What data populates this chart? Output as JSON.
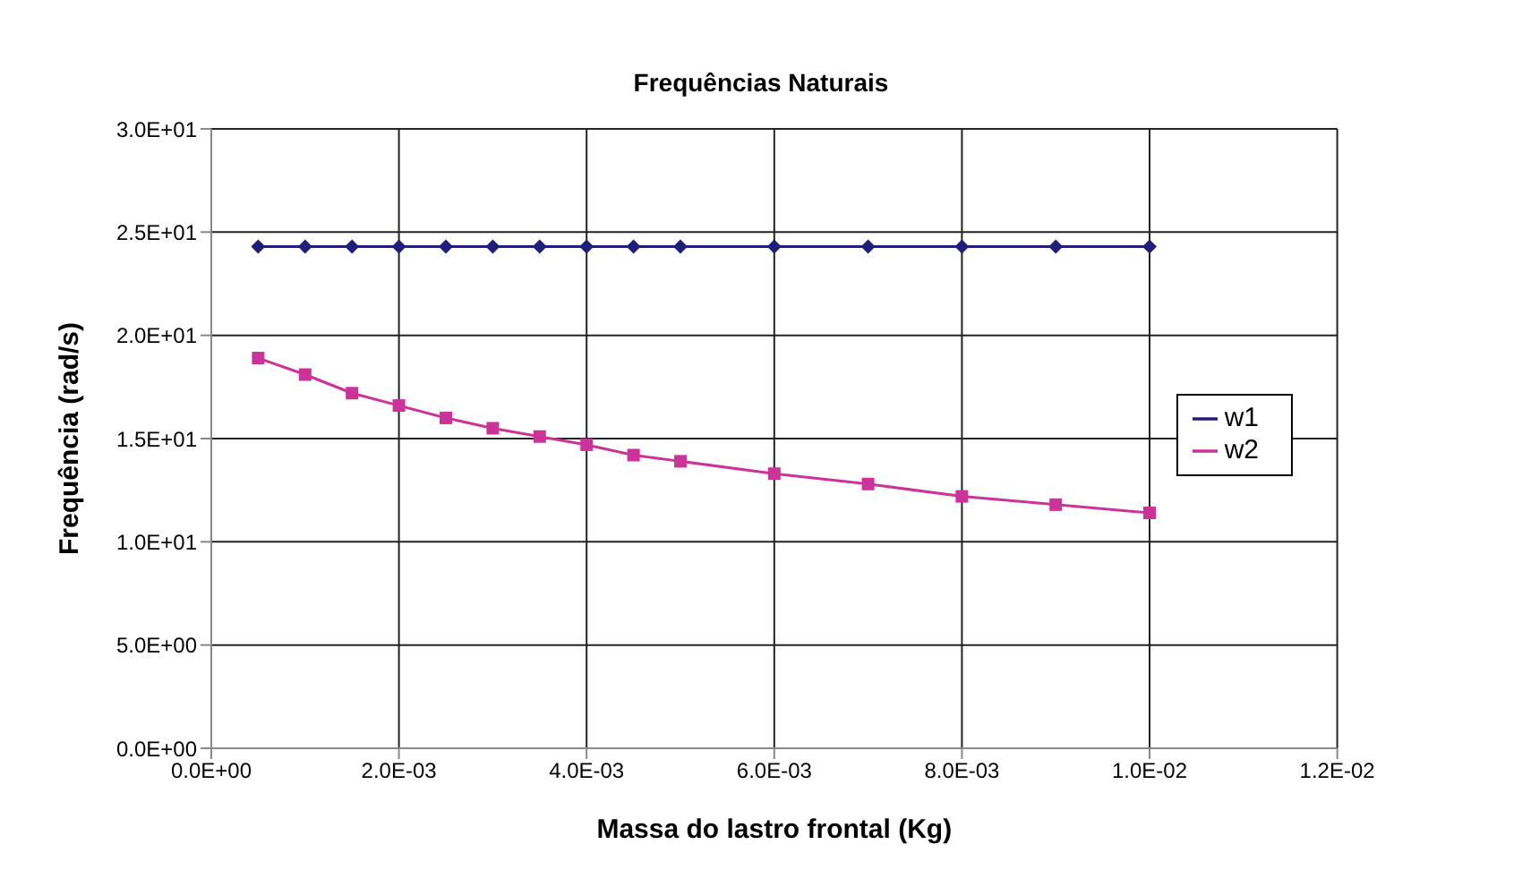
{
  "chart_data": {
    "type": "line",
    "title": "Frequências Naturais",
    "xlabel": "Massa do lastro frontal (Kg)",
    "ylabel": "Frequência (rad/s)",
    "x": [
      0.0005,
      0.001,
      0.0015,
      0.002,
      0.0025,
      0.003,
      0.0035,
      0.004,
      0.0045,
      0.005,
      0.006,
      0.007,
      0.008,
      0.009,
      0.01
    ],
    "series": [
      {
        "name": "w1",
        "color": "#1f1f7a",
        "marker": "diamond",
        "values": [
          24.3,
          24.3,
          24.3,
          24.3,
          24.3,
          24.3,
          24.3,
          24.3,
          24.3,
          24.3,
          24.3,
          24.3,
          24.3,
          24.3,
          24.3
        ]
      },
      {
        "name": "w2",
        "color": "#cc3399",
        "marker": "square",
        "values": [
          18.9,
          18.1,
          17.2,
          16.6,
          16.0,
          15.5,
          15.1,
          14.7,
          14.2,
          13.9,
          13.3,
          12.8,
          12.2,
          11.8,
          11.4
        ]
      }
    ],
    "xlim": [
      0,
      0.012
    ],
    "xticks": [
      {
        "value": 0,
        "label": "0.0E+00"
      },
      {
        "value": 0.002,
        "label": "2.0E-03"
      },
      {
        "value": 0.004,
        "label": "4.0E-03"
      },
      {
        "value": 0.006,
        "label": "6.0E-03"
      },
      {
        "value": 0.008,
        "label": "8.0E-03"
      },
      {
        "value": 0.01,
        "label": "1.0E-02"
      },
      {
        "value": 0.012,
        "label": "1.2E-02"
      }
    ],
    "ylim": [
      0,
      30
    ],
    "yticks": [
      {
        "value": 0,
        "label": "0.0E+00"
      },
      {
        "value": 5,
        "label": "5.0E+00"
      },
      {
        "value": 10,
        "label": "1.0E+01"
      },
      {
        "value": 15,
        "label": "1.5E+01"
      },
      {
        "value": 20,
        "label": "2.0E+01"
      },
      {
        "value": 25,
        "label": "2.5E+01"
      },
      {
        "value": 30,
        "label": "3.0E+01"
      }
    ],
    "grid": true,
    "legend": "right",
    "line_style": "solid"
  }
}
